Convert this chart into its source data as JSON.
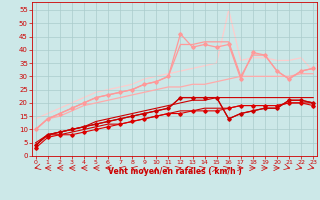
{
  "x": [
    0,
    1,
    2,
    3,
    4,
    5,
    6,
    7,
    8,
    9,
    10,
    11,
    12,
    13,
    14,
    15,
    16,
    17,
    18,
    19,
    20,
    21,
    22,
    23
  ],
  "lines": [
    {
      "y": [
        4,
        8,
        8,
        9,
        10,
        11,
        12,
        12,
        13,
        14,
        15,
        16,
        17,
        17,
        18,
        18,
        18,
        19,
        19,
        19,
        19,
        20,
        20,
        20
      ],
      "color": "#cc0000",
      "lw": 0.8,
      "marker": null,
      "ms": 0,
      "zorder": 2
    },
    {
      "y": [
        3,
        7,
        8,
        8,
        9,
        10,
        11,
        12,
        13,
        14,
        15,
        16,
        16,
        17,
        17,
        17,
        18,
        19,
        19,
        19,
        19,
        20,
        20,
        19
      ],
      "color": "#dd0000",
      "lw": 0.8,
      "marker": "D",
      "ms": 1.8,
      "zorder": 3
    },
    {
      "y": [
        4,
        8,
        9,
        10,
        11,
        12,
        13,
        14,
        15,
        16,
        17,
        18,
        22,
        22,
        22,
        22,
        14,
        16,
        17,
        18,
        18,
        21,
        21,
        20
      ],
      "color": "#cc0000",
      "lw": 0.9,
      "marker": "D",
      "ms": 1.8,
      "zorder": 3
    },
    {
      "y": [
        4,
        8,
        9,
        10,
        11,
        12,
        13,
        14,
        15,
        16,
        17,
        18,
        22,
        22,
        22,
        22,
        14,
        16,
        17,
        18,
        18,
        21,
        21,
        20
      ],
      "color": "#bb0000",
      "lw": 0.8,
      "marker": null,
      "ms": 0,
      "zorder": 2
    },
    {
      "y": [
        5,
        8,
        9,
        10,
        11,
        13,
        14,
        15,
        16,
        17,
        18,
        19,
        20,
        21,
        21,
        22,
        22,
        22,
        22,
        22,
        22,
        22,
        22,
        22
      ],
      "color": "#cc0000",
      "lw": 0.8,
      "marker": null,
      "ms": 0,
      "zorder": 2
    },
    {
      "y": [
        10,
        14,
        15,
        17,
        19,
        20,
        21,
        22,
        23,
        24,
        25,
        26,
        26,
        27,
        27,
        28,
        29,
        30,
        30,
        30,
        30,
        30,
        31,
        31
      ],
      "color": "#ffaaaa",
      "lw": 0.9,
      "marker": null,
      "ms": 0,
      "zorder": 2
    },
    {
      "y": [
        10,
        14,
        16,
        18,
        20,
        22,
        23,
        24,
        25,
        27,
        28,
        30,
        46,
        41,
        42,
        41,
        42,
        29,
        39,
        38,
        32,
        29,
        32,
        33
      ],
      "color": "#ff9999",
      "lw": 0.9,
      "marker": "D",
      "ms": 1.8,
      "zorder": 3
    },
    {
      "y": [
        10,
        14,
        16,
        18,
        20,
        22,
        23,
        24,
        25,
        27,
        28,
        30,
        42,
        42,
        43,
        43,
        43,
        30,
        38,
        38,
        32,
        29,
        32,
        33
      ],
      "color": "#ff9999",
      "lw": 0.9,
      "marker": null,
      "ms": 0,
      "zorder": 2
    },
    {
      "y": [
        14,
        16,
        18,
        20,
        22,
        24,
        25,
        26,
        27,
        29,
        30,
        31,
        32,
        33,
        34,
        35,
        55,
        36,
        37,
        37,
        36,
        36,
        37,
        32
      ],
      "color": "#ffcccc",
      "lw": 0.9,
      "marker": null,
      "ms": 0,
      "zorder": 1
    }
  ],
  "xlim": [
    -0.3,
    23.3
  ],
  "ylim": [
    0,
    58
  ],
  "yticks": [
    0,
    5,
    10,
    15,
    20,
    25,
    30,
    35,
    40,
    45,
    50,
    55
  ],
  "xticks": [
    0,
    1,
    2,
    3,
    4,
    5,
    6,
    7,
    8,
    9,
    10,
    11,
    12,
    13,
    14,
    15,
    16,
    17,
    18,
    19,
    20,
    21,
    22,
    23
  ],
  "xlabel": "Vent moyen/en rafales ( km/h )",
  "bg_color": "#cce8e8",
  "grid_color": "#aacccc",
  "tick_color": "#cc0000",
  "xlabel_color": "#cc0000",
  "wind_directions": [
    225,
    270,
    270,
    270,
    270,
    270,
    270,
    315,
    315,
    0,
    0,
    45,
    45,
    45,
    45,
    45,
    45,
    90,
    90,
    90,
    90,
    135,
    135,
    135
  ]
}
